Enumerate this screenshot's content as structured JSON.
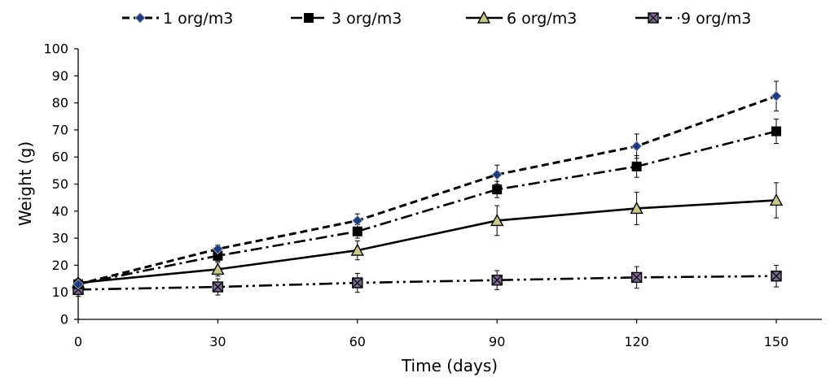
{
  "chart_data": {
    "type": "line",
    "xlabel": "Time (days)",
    "ylabel": "Weight (g)",
    "x": [
      0,
      30,
      60,
      90,
      120,
      150
    ],
    "xlim": [
      0,
      160
    ],
    "ylim": [
      0,
      100
    ],
    "xticks": [
      "0",
      "30",
      "60",
      "90",
      "120",
      "150"
    ],
    "yticks": [
      "0",
      "10",
      "20",
      "30",
      "40",
      "50",
      "60",
      "70",
      "80",
      "90",
      "100"
    ],
    "grid": false,
    "legend_position": "top",
    "series": [
      {
        "name": "1 org/m3",
        "marker": "diamond",
        "line_style": "dashed",
        "marker_color": "#1f3a78",
        "values": [
          13,
          26,
          36.5,
          53.5,
          64,
          82.5
        ],
        "errors": [
          1.5,
          1.5,
          2.5,
          3.5,
          4.5,
          5.5
        ]
      },
      {
        "name": "3 org/m3",
        "marker": "square",
        "line_style": "dash-dot",
        "marker_color": "#000000",
        "values": [
          13,
          23.5,
          32.5,
          48,
          56.5,
          69.5
        ],
        "errors": [
          1.5,
          2,
          2.5,
          3,
          4,
          4.5
        ]
      },
      {
        "name": "6 org/m3",
        "marker": "triangle",
        "line_style": "solid",
        "marker_color": "#c8c88a",
        "values": [
          13.5,
          18.5,
          25.5,
          36.5,
          41,
          44
        ],
        "errors": [
          1.5,
          2.5,
          3.5,
          5.5,
          6,
          6.5
        ]
      },
      {
        "name": "·9 org/m3",
        "marker": "square-x",
        "line_style": "dash-dot-dot",
        "marker_color": "#7a6a8e",
        "values": [
          11,
          12,
          13.5,
          14.5,
          15.5,
          16
        ],
        "errors": [
          2.5,
          3,
          3.5,
          3.5,
          4,
          4
        ]
      }
    ]
  }
}
